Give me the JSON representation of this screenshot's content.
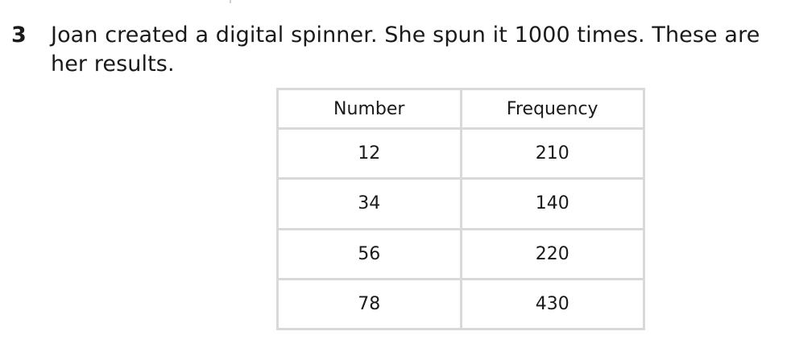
{
  "question": {
    "number": "3",
    "text": "Joan created a digital spinner. She spun it 1000 times. These are her results."
  },
  "table": {
    "headers": [
      "Number",
      "Frequency"
    ],
    "rows": [
      {
        "number": "12",
        "frequency": "210"
      },
      {
        "number": "34",
        "frequency": "140"
      },
      {
        "number": "56",
        "frequency": "220"
      },
      {
        "number": "78",
        "frequency": "430"
      }
    ]
  }
}
